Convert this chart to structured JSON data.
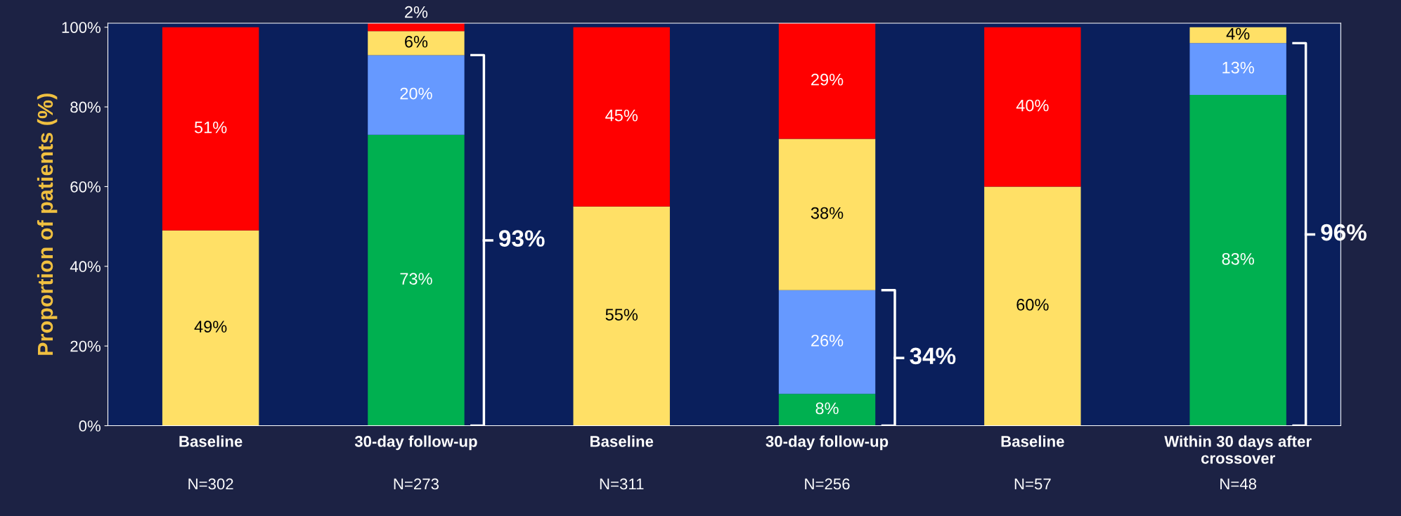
{
  "chart_data": {
    "type": "bar",
    "stacked": true,
    "ylabel": "Proportion of patients (%)",
    "categories": [
      "Baseline",
      "30-day follow-up",
      "Baseline",
      "30-day follow-up",
      "Baseline",
      "Within 30 days after\ncrossover"
    ],
    "series": [
      {
        "color": "#00b050",
        "values": [
          0,
          73,
          0,
          8,
          0,
          83
        ],
        "value_labels": [
          null,
          "73%",
          null,
          "8%",
          null,
          "83%"
        ]
      },
      {
        "color": "#6699ff",
        "values": [
          0,
          20,
          0,
          26,
          0,
          13
        ],
        "value_labels": [
          null,
          "20%",
          null,
          "26%",
          null,
          "13%"
        ]
      },
      {
        "color": "#ffe066",
        "values": [
          49,
          6,
          55,
          38,
          60,
          4
        ],
        "value_labels": [
          "49%",
          "6%",
          "55%",
          "38%",
          "60%",
          "4%"
        ]
      },
      {
        "color": "#ff0000",
        "values": [
          51,
          2,
          45,
          29,
          40,
          0
        ],
        "value_labels": [
          "51%",
          "2%",
          "45%",
          "29%",
          "40%",
          null
        ]
      }
    ],
    "ylim": [
      0,
      101
    ],
    "yticks": [
      {
        "value": 0,
        "label": "0%"
      },
      {
        "value": 20,
        "label": "20%"
      },
      {
        "value": 40,
        "label": "40%"
      },
      {
        "value": 60,
        "label": "60%"
      },
      {
        "value": 80,
        "label": "80%"
      },
      {
        "value": 100,
        "label": "100%"
      }
    ],
    "grid": false,
    "annotations": [
      "93%",
      "34%",
      "96%",
      "N=302",
      "N=273",
      "N=311",
      "N=256",
      "N=57",
      "N=48"
    ]
  }
}
